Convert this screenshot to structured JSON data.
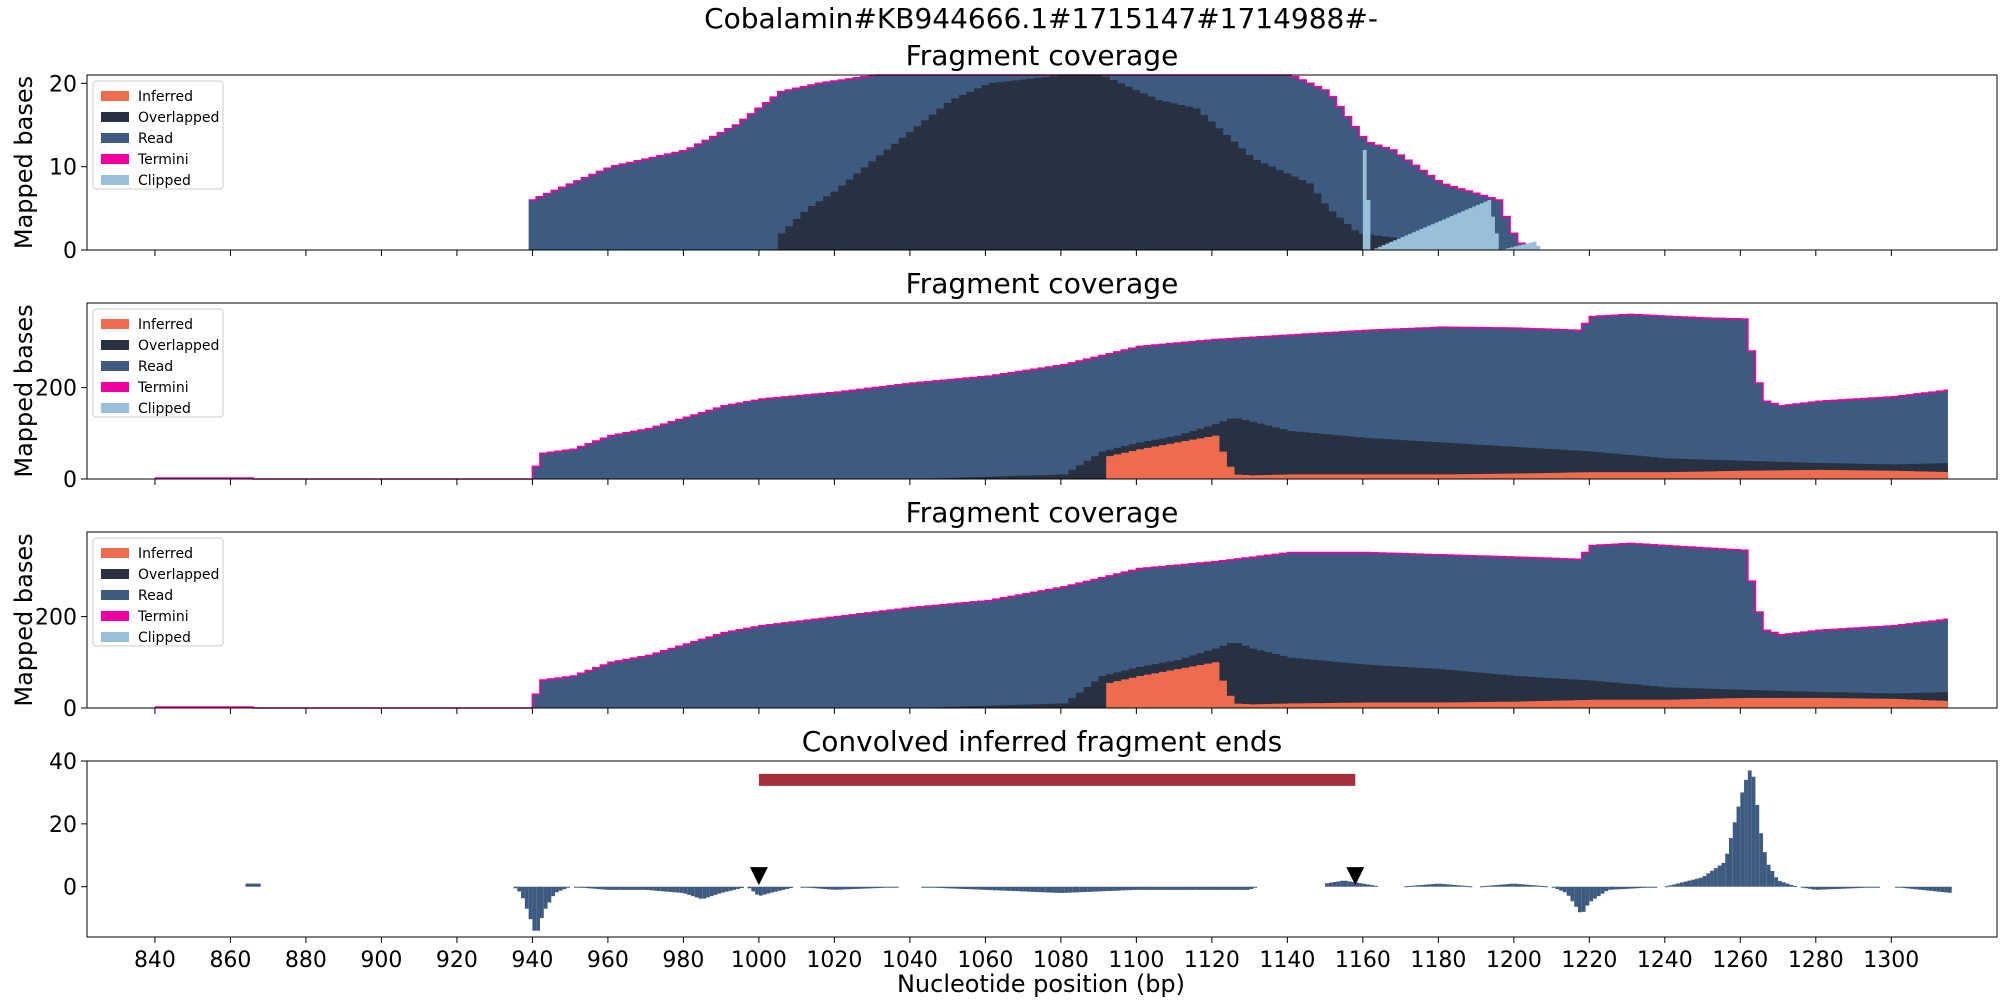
{
  "figure": {
    "suptitle": "Cobalamin#KB944666.1#1715147#1714988#-",
    "xlabel": "Nucleotide position (bp)"
  },
  "colors": {
    "inferred": "#ee6b4d",
    "overlapped": "#283142",
    "read": "#3d5a80",
    "termini": "#f000a0",
    "clipped": "#98c1d9",
    "bar": "#a62f3d",
    "marker": "#000000"
  },
  "chart_data": [
    {
      "type": "area",
      "title": "Fragment coverage",
      "ylabel": "Mapped bases",
      "xlim": [
        822,
        1328
      ],
      "ylim": [
        0,
        21
      ],
      "yticks": [
        0,
        10,
        20
      ],
      "grid": false,
      "legend_position": "top-left",
      "legend": [
        "Inferred",
        "Overlapped",
        "Read",
        "Termini",
        "Clipped"
      ],
      "series": [
        {
          "name": "Read",
          "x": [
            939,
            960,
            980,
            993,
            1005,
            1015,
            1030,
            1060,
            1080,
            1100,
            1115,
            1130,
            1140,
            1150,
            1155,
            1160,
            1167,
            1180,
            1195,
            1200,
            1205
          ],
          "values": [
            6,
            10,
            12,
            15,
            19,
            20,
            21,
            21,
            21,
            21,
            21,
            21,
            21,
            19,
            16,
            13,
            12,
            8,
            6,
            1,
            0
          ]
        },
        {
          "name": "Overlapped",
          "x": [
            1005,
            1012,
            1019,
            1030,
            1050,
            1060,
            1080,
            1090,
            1105,
            1115,
            1130,
            1145,
            1150,
            1158,
            1195
          ],
          "values": [
            2,
            5,
            7,
            11,
            18,
            20,
            21,
            21,
            18,
            17,
            11,
            8,
            5,
            2,
            0
          ]
        },
        {
          "name": "Clipped",
          "x": [
            1160,
            1162,
            1193,
            1196,
            1205,
            1207
          ],
          "values": [
            12,
            0,
            6,
            0,
            1,
            0
          ]
        }
      ],
      "x_ticks": [
        840,
        860,
        880,
        900,
        920,
        940,
        960,
        980,
        1000,
        1020,
        1040,
        1060,
        1080,
        1100,
        1120,
        1140,
        1160,
        1180,
        1200,
        1220,
        1240,
        1260,
        1280,
        1300
      ],
      "x_tick_labels_shown": false
    },
    {
      "type": "area",
      "title": "Fragment coverage",
      "ylabel": "Mapped bases",
      "xlim": [
        822,
        1328
      ],
      "ylim": [
        0,
        385
      ],
      "yticks": [
        0,
        200
      ],
      "grid": false,
      "legend_position": "top-left",
      "legend": [
        "Inferred",
        "Overlapped",
        "Read",
        "Termini",
        "Clipped"
      ],
      "series": [
        {
          "name": "Read",
          "x": [
            840,
            865,
            866,
            939,
            941,
            950,
            960,
            970,
            980,
            990,
            1000,
            1020,
            1040,
            1060,
            1080,
            1090,
            1100,
            1120,
            1140,
            1160,
            1180,
            1200,
            1217,
            1219,
            1230,
            1250,
            1260,
            1264,
            1266,
            1270,
            1280,
            1300,
            1315
          ],
          "values": [
            2,
            2,
            0,
            0,
            55,
            65,
            95,
            110,
            135,
            160,
            175,
            190,
            210,
            225,
            250,
            270,
            290,
            305,
            315,
            325,
            332,
            330,
            325,
            355,
            360,
            352,
            350,
            210,
            170,
            160,
            170,
            180,
            195
          ]
        },
        {
          "name": "Overlapped",
          "x": [
            1040,
            1080,
            1090,
            1095,
            1100,
            1110,
            1120,
            1125,
            1130,
            1140,
            1160,
            1180,
            1200,
            1220,
            1240,
            1260,
            1280,
            1300,
            1315
          ],
          "values": [
            0,
            10,
            60,
            70,
            80,
            95,
            120,
            135,
            125,
            105,
            90,
            80,
            70,
            60,
            45,
            40,
            35,
            32,
            35
          ]
        },
        {
          "name": "Inferred",
          "x": [
            1090,
            1092,
            1100,
            1110,
            1120,
            1122,
            1125,
            1130,
            1140,
            1160,
            1180,
            1200,
            1220,
            1240,
            1260,
            1280,
            1300,
            1315
          ],
          "values": [
            0,
            50,
            65,
            80,
            95,
            60,
            10,
            8,
            10,
            10,
            10,
            12,
            15,
            15,
            18,
            20,
            18,
            15
          ]
        }
      ],
      "x_ticks": [
        840,
        860,
        880,
        900,
        920,
        940,
        960,
        980,
        1000,
        1020,
        1040,
        1060,
        1080,
        1100,
        1120,
        1140,
        1160,
        1180,
        1200,
        1220,
        1240,
        1260,
        1280,
        1300
      ],
      "x_tick_labels_shown": false
    },
    {
      "type": "area",
      "title": "Fragment coverage",
      "ylabel": "Mapped bases",
      "xlim": [
        822,
        1328
      ],
      "ylim": [
        0,
        385
      ],
      "yticks": [
        0,
        200
      ],
      "grid": false,
      "legend_position": "top-left",
      "legend": [
        "Inferred",
        "Overlapped",
        "Read",
        "Termini",
        "Clipped"
      ],
      "series": [
        {
          "name": "Read",
          "x": [
            840,
            865,
            866,
            939,
            941,
            950,
            960,
            970,
            980,
            990,
            1000,
            1020,
            1040,
            1060,
            1080,
            1090,
            1100,
            1120,
            1140,
            1160,
            1180,
            1200,
            1217,
            1219,
            1230,
            1250,
            1260,
            1264,
            1266,
            1270,
            1280,
            1300,
            1315
          ],
          "values": [
            2,
            2,
            0,
            0,
            60,
            70,
            100,
            115,
            140,
            165,
            180,
            200,
            220,
            235,
            265,
            285,
            305,
            320,
            340,
            340,
            335,
            330,
            325,
            355,
            360,
            350,
            345,
            210,
            170,
            160,
            170,
            180,
            195
          ]
        },
        {
          "name": "Overlapped",
          "x": [
            1040,
            1080,
            1090,
            1095,
            1100,
            1110,
            1120,
            1125,
            1130,
            1140,
            1160,
            1180,
            1200,
            1220,
            1240,
            1260,
            1280,
            1300,
            1315
          ],
          "values": [
            0,
            10,
            70,
            80,
            90,
            105,
            130,
            145,
            130,
            110,
            95,
            85,
            70,
            60,
            45,
            40,
            35,
            32,
            35
          ]
        },
        {
          "name": "Inferred",
          "x": [
            1090,
            1092,
            1100,
            1110,
            1120,
            1122,
            1125,
            1130,
            1140,
            1160,
            1180,
            1200,
            1220,
            1240,
            1260,
            1280,
            1300,
            1315
          ],
          "values": [
            0,
            55,
            70,
            85,
            100,
            60,
            10,
            8,
            10,
            12,
            12,
            14,
            18,
            18,
            22,
            22,
            20,
            15
          ]
        }
      ],
      "x_ticks": [
        840,
        860,
        880,
        900,
        920,
        940,
        960,
        980,
        1000,
        1020,
        1040,
        1060,
        1080,
        1100,
        1120,
        1140,
        1160,
        1180,
        1200,
        1220,
        1240,
        1260,
        1280,
        1300
      ],
      "x_tick_labels_shown": false
    },
    {
      "type": "bar",
      "title": "Convolved inferred fragment ends",
      "xlabel": "Nucleotide position (bp)",
      "xlim": [
        822,
        1328
      ],
      "ylim": [
        -16,
        40
      ],
      "yticks": [
        0,
        20,
        40
      ],
      "grid": false,
      "segments": [
        [
          935,
          1132
        ],
        [
          1150,
          1165
        ],
        [
          1170,
          1316
        ]
      ],
      "profile": {
        "x": [
          935,
          937,
          940,
          941,
          943,
          946,
          950,
          960,
          970,
          980,
          985,
          990,
          997,
          1000,
          1003,
          1010,
          1020,
          1040,
          1060,
          1080,
          1100,
          1120,
          1130,
          1132,
          1150,
          1155,
          1160,
          1165,
          1170,
          1180,
          1190,
          1200,
          1210,
          1214,
          1218,
          1220,
          1225,
          1240,
          1250,
          1256,
          1258,
          1260,
          1262,
          1263,
          1264,
          1265,
          1267,
          1270,
          1275,
          1280,
          1300,
          1316
        ],
        "values": [
          0,
          -2,
          -12,
          -16,
          -8,
          -2,
          0,
          -1,
          -1,
          -2,
          -4,
          -2,
          0,
          -3,
          -2,
          0,
          -1,
          0,
          -1,
          -2,
          -1,
          -1,
          -1,
          0,
          1,
          2,
          1,
          0,
          0,
          1,
          0,
          1,
          0,
          -2,
          -9,
          -5,
          -1,
          0,
          3,
          8,
          18,
          28,
          36,
          38,
          32,
          20,
          8,
          2,
          0,
          -1,
          0,
          -2
        ]
      },
      "extra_bars": [
        {
          "x": 866,
          "value": 1
        }
      ],
      "range_bar": {
        "x0": 1000,
        "x1": 1158,
        "y": 34
      },
      "markers": [
        {
          "x": 1000,
          "y": 0.5,
          "symbol": "down-triangle"
        },
        {
          "x": 1158,
          "y": 0.5,
          "symbol": "down-triangle"
        }
      ],
      "x_ticks": [
        840,
        860,
        880,
        900,
        920,
        940,
        960,
        980,
        1000,
        1020,
        1040,
        1060,
        1080,
        1100,
        1120,
        1140,
        1160,
        1180,
        1200,
        1220,
        1240,
        1260,
        1280,
        1300
      ],
      "x_tick_labels_shown": true
    }
  ]
}
